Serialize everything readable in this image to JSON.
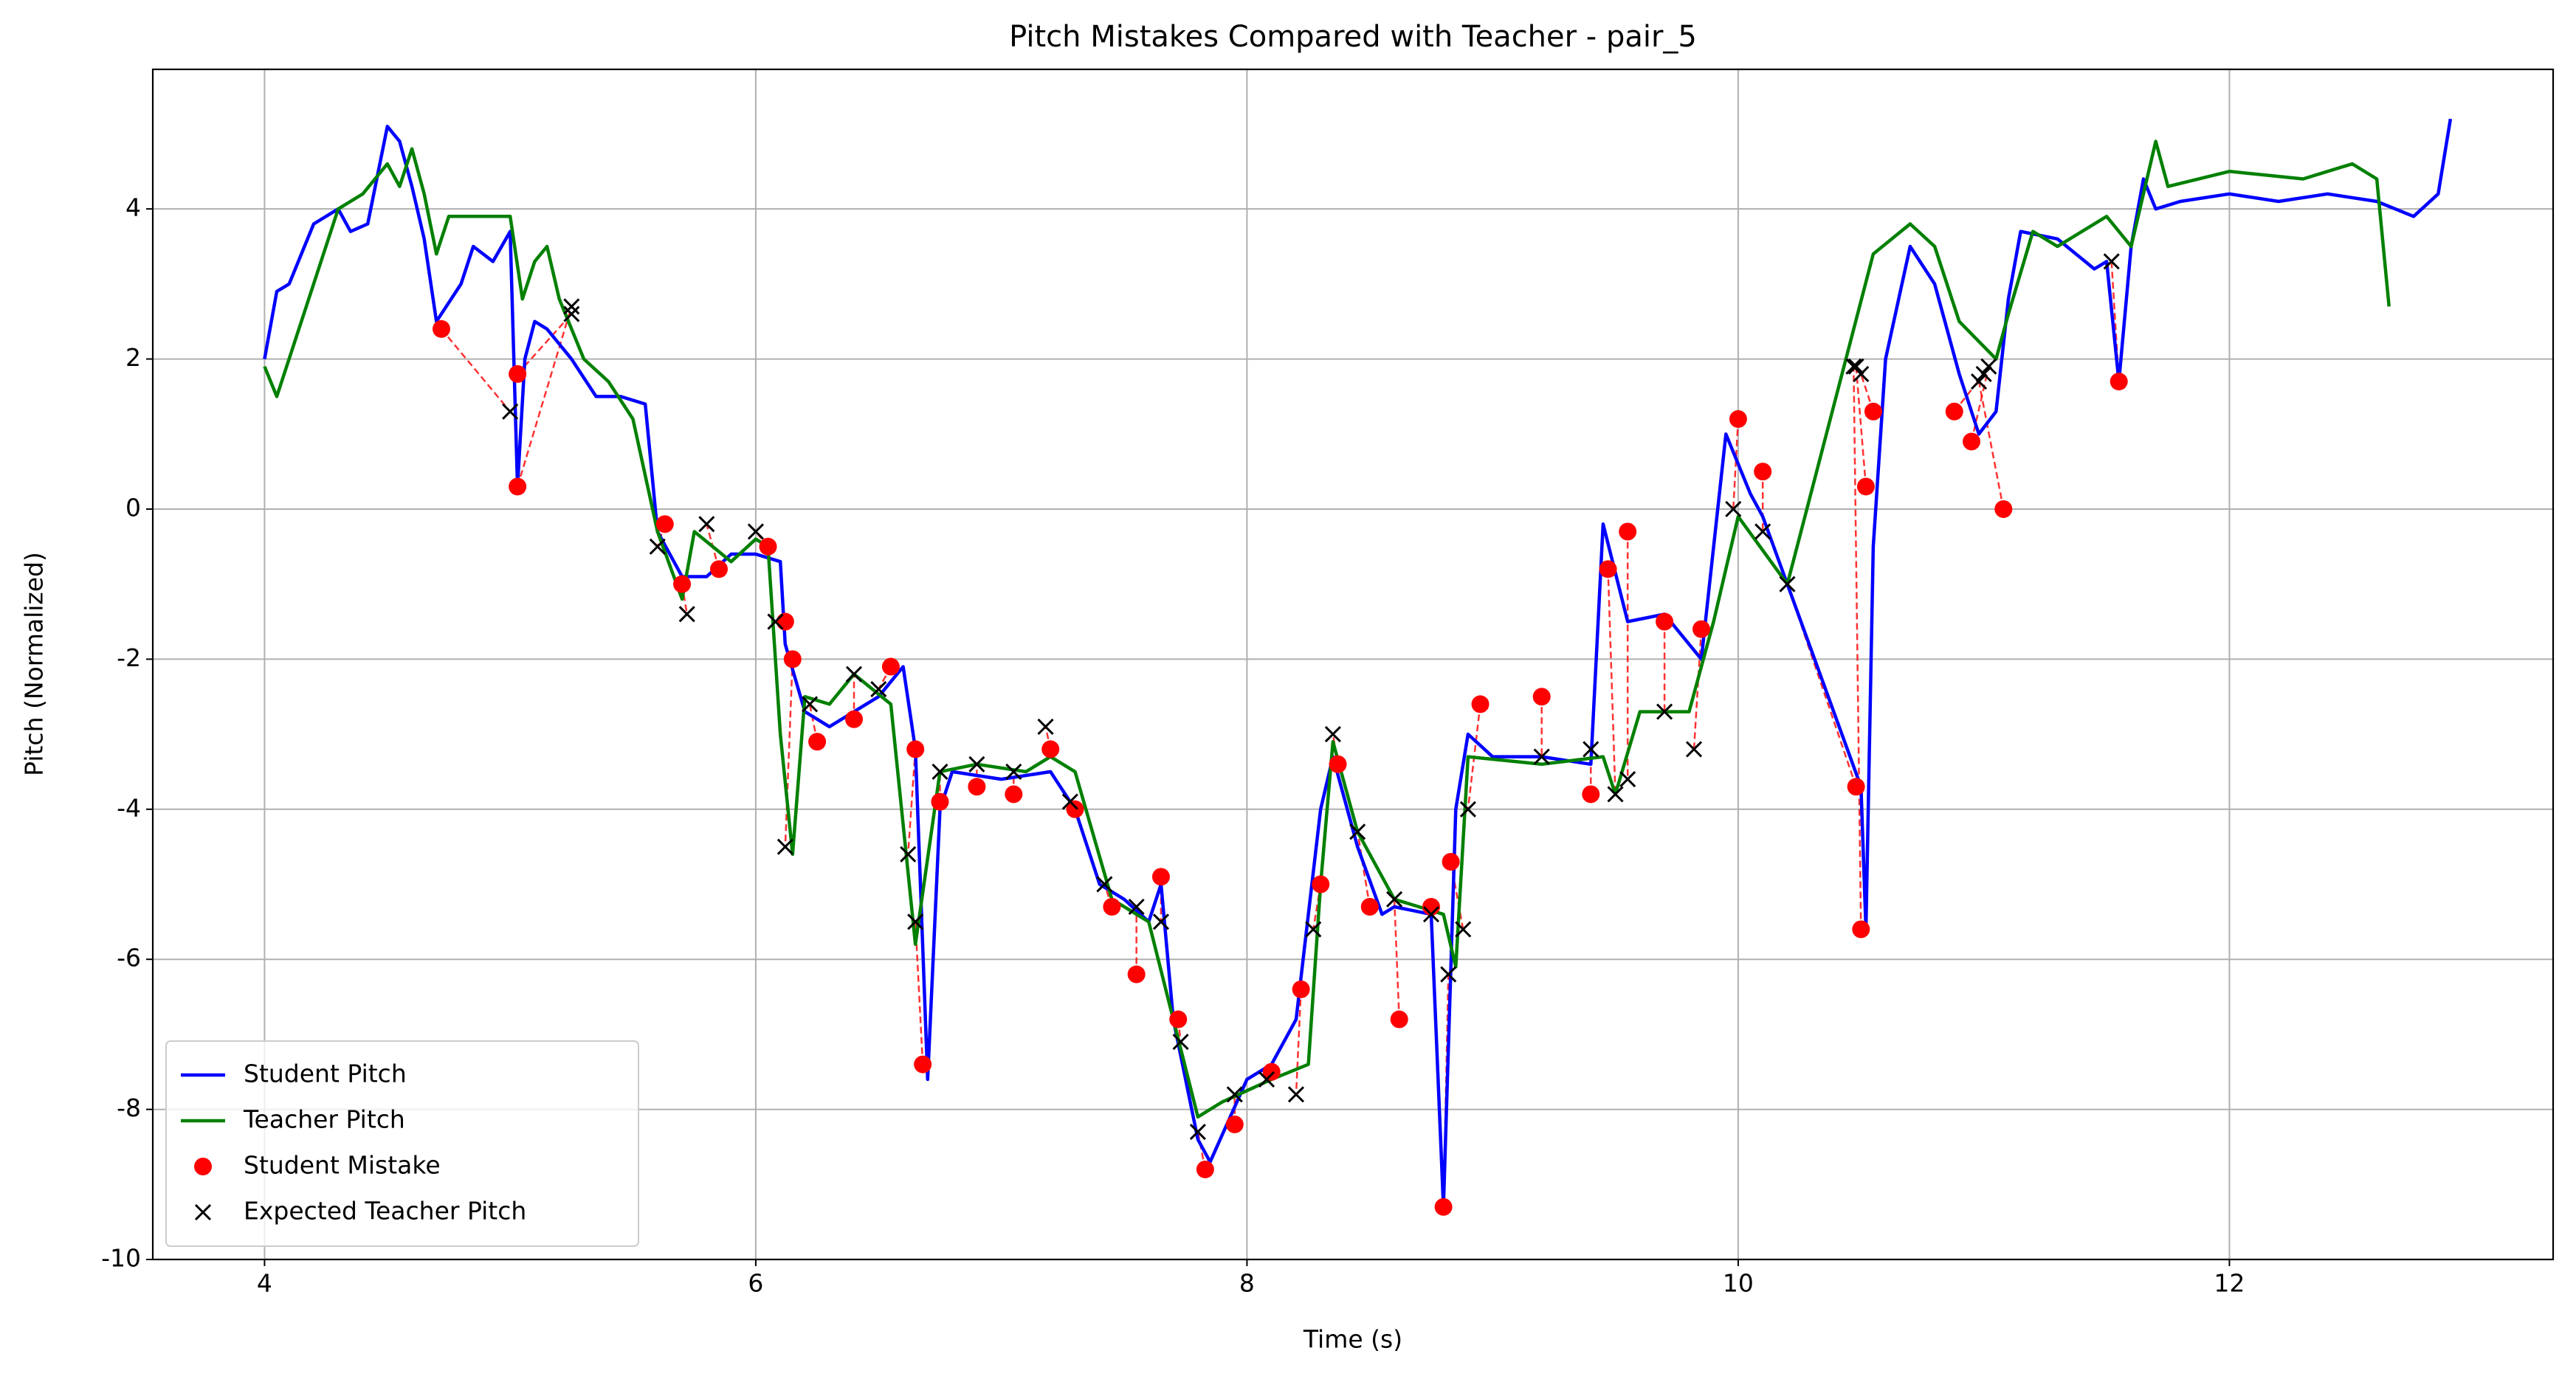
{
  "chart_data": {
    "type": "line",
    "title": "Pitch Mistakes Compared with Teacher - pair_5",
    "x_label": "Time (s)",
    "y_label": "Pitch (Normalized)",
    "xlim": [
      3.545,
      13.318
    ],
    "ylim": [
      -10,
      5.86
    ],
    "xticks": [
      4,
      6,
      8,
      10,
      12
    ],
    "yticks": [
      -10,
      -8,
      -6,
      -4,
      -2,
      0,
      2,
      4
    ],
    "grid": true,
    "legend": "lower left",
    "series": [
      {
        "name": "Student Pitch",
        "color": "#0000ff",
        "style": "line",
        "x": [
          4.0,
          4.05,
          4.1,
          4.2,
          4.3,
          4.35,
          4.42,
          4.5,
          4.55,
          4.6,
          4.65,
          4.7,
          4.8,
          4.85,
          4.93,
          5.0,
          5.03,
          5.06,
          5.1,
          5.15,
          5.25,
          5.35,
          5.45,
          5.55,
          5.6,
          5.7,
          5.8,
          5.9,
          6.0,
          6.1,
          6.12,
          6.2,
          6.3,
          6.4,
          6.5,
          6.6,
          6.65,
          6.7,
          6.75,
          6.8,
          7.0,
          7.2,
          7.3,
          7.4,
          7.5,
          7.6,
          7.65,
          7.7,
          7.8,
          7.85,
          8.0,
          8.1,
          8.2,
          8.3,
          8.35,
          8.45,
          8.55,
          8.6,
          8.75,
          8.8,
          8.85,
          8.9,
          9.0,
          9.2,
          9.4,
          9.45,
          9.55,
          9.7,
          9.85,
          9.95,
          10.05,
          10.1,
          10.5,
          10.52,
          10.55,
          10.6,
          10.7,
          10.8,
          10.9,
          10.98,
          11.05,
          11.1,
          11.15,
          11.3,
          11.45,
          11.5,
          11.55,
          11.6,
          11.65,
          11.7,
          11.8,
          12.0,
          12.2,
          12.4,
          12.6,
          12.75,
          12.85,
          12.9
        ],
        "values": [
          2.0,
          2.9,
          3.0,
          3.8,
          4.0,
          3.7,
          3.8,
          5.1,
          4.9,
          4.3,
          3.6,
          2.5,
          3.0,
          3.5,
          3.3,
          3.7,
          0.3,
          2.0,
          2.5,
          2.4,
          2.0,
          1.5,
          1.5,
          1.4,
          -0.3,
          -0.9,
          -0.9,
          -0.6,
          -0.6,
          -0.7,
          -1.8,
          -2.7,
          -2.9,
          -2.7,
          -2.5,
          -2.1,
          -3.2,
          -7.6,
          -4.0,
          -3.5,
          -3.6,
          -3.5,
          -4.0,
          -5.0,
          -5.2,
          -5.5,
          -5.0,
          -6.8,
          -8.4,
          -8.7,
          -7.6,
          -7.4,
          -6.8,
          -4.0,
          -3.3,
          -4.5,
          -5.4,
          -5.3,
          -5.4,
          -9.3,
          -4.0,
          -3.0,
          -3.3,
          -3.3,
          -3.4,
          -0.2,
          -1.5,
          -1.4,
          -2.0,
          1.0,
          0.2,
          -0.1,
          -3.7,
          -5.6,
          -0.5,
          2.0,
          3.5,
          3.0,
          1.8,
          1.0,
          1.3,
          2.8,
          3.7,
          3.6,
          3.2,
          3.3,
          1.7,
          3.5,
          4.4,
          4.0,
          4.1,
          4.2,
          4.1,
          4.2,
          4.1,
          3.9,
          4.2,
          5.2
        ]
      },
      {
        "name": "Teacher Pitch",
        "color": "#008000",
        "style": "line",
        "x": [
          4.0,
          4.05,
          4.15,
          4.3,
          4.4,
          4.5,
          4.55,
          4.6,
          4.65,
          4.7,
          4.75,
          4.9,
          5.0,
          5.05,
          5.1,
          5.15,
          5.2,
          5.3,
          5.4,
          5.5,
          5.6,
          5.7,
          5.75,
          5.9,
          6.0,
          6.05,
          6.1,
          6.15,
          6.2,
          6.3,
          6.4,
          6.55,
          6.65,
          6.75,
          6.9,
          7.1,
          7.2,
          7.3,
          7.45,
          7.6,
          7.8,
          7.9,
          8.1,
          8.25,
          8.3,
          8.35,
          8.45,
          8.6,
          8.8,
          8.85,
          8.9,
          9.2,
          9.45,
          9.5,
          9.6,
          9.8,
          9.9,
          10.0,
          10.2,
          10.55,
          10.7,
          10.8,
          10.9,
          11.05,
          11.1,
          11.2,
          11.3,
          11.5,
          11.6,
          11.7,
          11.75,
          12.0,
          12.3,
          12.5,
          12.6,
          12.65
        ],
        "values": [
          1.9,
          1.5,
          2.5,
          4.0,
          4.2,
          4.6,
          4.3,
          4.8,
          4.2,
          3.4,
          3.9,
          3.9,
          3.9,
          2.8,
          3.3,
          3.5,
          2.8,
          2.0,
          1.7,
          1.2,
          -0.3,
          -1.2,
          -0.3,
          -0.7,
          -0.4,
          -0.5,
          -3.0,
          -4.6,
          -2.5,
          -2.6,
          -2.2,
          -2.6,
          -5.8,
          -3.5,
          -3.4,
          -3.5,
          -3.3,
          -3.5,
          -5.2,
          -5.5,
          -8.1,
          -7.9,
          -7.6,
          -7.4,
          -5.0,
          -3.1,
          -4.3,
          -5.2,
          -5.4,
          -6.1,
          -3.3,
          -3.4,
          -3.3,
          -3.8,
          -2.7,
          -2.7,
          -1.5,
          -0.1,
          -1.0,
          3.4,
          3.8,
          3.5,
          2.5,
          2.0,
          2.6,
          3.7,
          3.5,
          3.9,
          3.5,
          4.9,
          4.3,
          4.5,
          4.4,
          4.6,
          4.4,
          2.7
        ]
      },
      {
        "name": "Student Mistake",
        "color": "#ff0000",
        "style": "circle",
        "x": [
          4.72,
          5.03,
          5.03,
          5.63,
          5.7,
          5.85,
          6.05,
          6.12,
          6.15,
          6.25,
          6.4,
          6.55,
          6.65,
          6.68,
          6.75,
          6.9,
          7.05,
          7.2,
          7.3,
          7.45,
          7.55,
          7.65,
          7.72,
          7.83,
          7.95,
          8.1,
          8.22,
          8.3,
          8.37,
          8.5,
          8.62,
          8.75,
          8.8,
          8.83,
          8.95,
          9.2,
          9.4,
          9.47,
          9.55,
          9.7,
          9.85,
          10.0,
          10.1,
          10.48,
          10.5,
          10.52,
          10.55,
          10.88,
          10.95,
          11.08,
          11.55
        ],
        "values": [
          2.4,
          1.8,
          0.3,
          -0.2,
          -1.0,
          -0.8,
          -0.5,
          -1.5,
          -2.0,
          -3.1,
          -2.8,
          -2.1,
          -3.2,
          -7.4,
          -3.9,
          -3.7,
          -3.8,
          -3.2,
          -4.0,
          -5.3,
          -6.2,
          -4.9,
          -6.8,
          -8.8,
          -8.2,
          -7.5,
          -6.4,
          -5.0,
          -3.4,
          -5.3,
          -6.8,
          -5.3,
          -9.3,
          -4.7,
          -2.6,
          -2.5,
          -3.8,
          -0.8,
          -0.3,
          -1.5,
          -1.6,
          1.2,
          0.5,
          -3.7,
          -5.6,
          0.3,
          1.3,
          1.3,
          0.9,
          0.0,
          1.7
        ]
      },
      {
        "name": "Expected Teacher Pitch",
        "color": "#000000",
        "style": "cross",
        "x": [
          5.0,
          5.25,
          5.25,
          5.6,
          5.72,
          5.8,
          6.0,
          6.08,
          6.12,
          6.22,
          6.4,
          6.5,
          6.62,
          6.65,
          6.75,
          6.9,
          7.05,
          7.18,
          7.28,
          7.42,
          7.55,
          7.65,
          7.73,
          7.8,
          7.95,
          8.08,
          8.2,
          8.27,
          8.35,
          8.45,
          8.6,
          8.75,
          8.82,
          8.88,
          8.9,
          9.2,
          9.4,
          9.5,
          9.55,
          9.7,
          9.82,
          9.98,
          10.1,
          10.2,
          10.47,
          10.48,
          10.5,
          11.0,
          11.02,
          10.98,
          11.52
        ],
        "values": [
          1.3,
          2.6,
          2.7,
          -0.5,
          -1.4,
          -0.2,
          -0.3,
          -1.5,
          -4.5,
          -2.6,
          -2.2,
          -2.4,
          -4.6,
          -5.5,
          -3.5,
          -3.4,
          -3.5,
          -2.9,
          -3.9,
          -5.0,
          -5.3,
          -5.5,
          -7.1,
          -8.3,
          -7.8,
          -7.6,
          -7.8,
          -5.6,
          -3.0,
          -4.3,
          -5.2,
          -5.4,
          -6.2,
          -5.6,
          -4.0,
          -3.3,
          -3.2,
          -3.8,
          -3.6,
          -2.7,
          -3.2,
          0.0,
          -0.3,
          -1.0,
          1.9,
          1.9,
          1.8,
          1.8,
          1.9,
          1.7,
          3.3
        ]
      }
    ]
  }
}
